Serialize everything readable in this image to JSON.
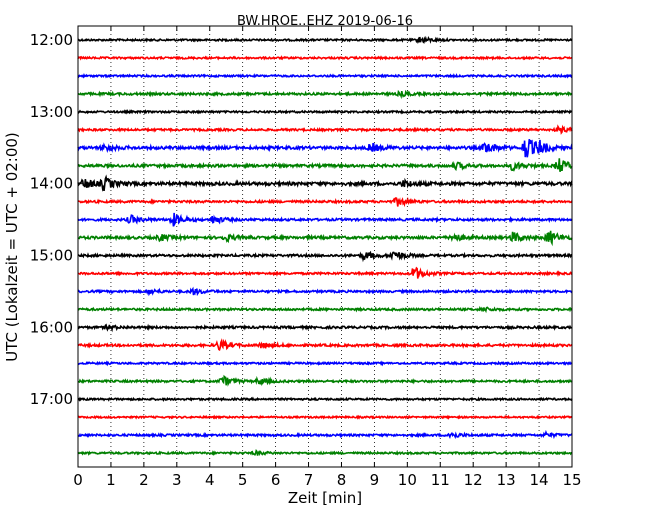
{
  "chart_data": {
    "type": "line",
    "title": "BW.HROE..EHZ 2019-06-16",
    "xlabel": "Zeit  [min]",
    "ylabel": "UTC (Lokalzeit = UTC + 02:00)",
    "xlim": [
      0,
      15
    ],
    "x_ticks": [
      "0",
      "1",
      "2",
      "3",
      "4",
      "5",
      "6",
      "7",
      "8",
      "9",
      "10",
      "11",
      "12",
      "13",
      "14",
      "15"
    ],
    "y_tick_labels": [
      "12:00",
      "13:00",
      "14:00",
      "15:00",
      "16:00",
      "17:00"
    ],
    "grid": "vertical dotted",
    "colors": [
      "#000000",
      "#ff0000",
      "#0000ff",
      "#008000"
    ],
    "traces": [
      {
        "start": "12:00",
        "color": "#000000",
        "amp": 0.9,
        "events": [
          {
            "min": 10.4,
            "amp": 3
          }
        ]
      },
      {
        "start": "12:15",
        "color": "#ff0000",
        "amp": 0.9,
        "events": []
      },
      {
        "start": "12:30",
        "color": "#0000ff",
        "amp": 0.9,
        "events": []
      },
      {
        "start": "12:45",
        "color": "#008000",
        "amp": 1.1,
        "events": [
          {
            "min": 9.8,
            "amp": 2
          }
        ]
      },
      {
        "start": "13:00",
        "color": "#000000",
        "amp": 0.9,
        "events": []
      },
      {
        "start": "13:15",
        "color": "#ff0000",
        "amp": 1.0,
        "events": [
          {
            "min": 14.6,
            "amp": 3
          }
        ]
      },
      {
        "start": "13:30",
        "color": "#0000ff",
        "amp": 1.4,
        "events": [
          {
            "min": 0.8,
            "amp": 3
          },
          {
            "min": 8.9,
            "amp": 4
          },
          {
            "min": 12.4,
            "amp": 6
          },
          {
            "min": 13.6,
            "amp": 12
          },
          {
            "min": 14.0,
            "amp": 5
          }
        ]
      },
      {
        "start": "13:45",
        "color": "#008000",
        "amp": 1.3,
        "events": [
          {
            "min": 11.5,
            "amp": 3
          },
          {
            "min": 13.2,
            "amp": 4
          },
          {
            "min": 14.6,
            "amp": 7
          }
        ]
      },
      {
        "start": "14:00",
        "color": "#000000",
        "amp": 1.5,
        "events": [
          {
            "min": 0.2,
            "amp": 5
          },
          {
            "min": 0.8,
            "amp": 6
          },
          {
            "min": 9.9,
            "amp": 3
          }
        ]
      },
      {
        "start": "14:15",
        "color": "#ff0000",
        "amp": 1.1,
        "events": [
          {
            "min": 9.7,
            "amp": 4
          }
        ]
      },
      {
        "start": "14:30",
        "color": "#0000ff",
        "amp": 1.1,
        "events": [
          {
            "min": 1.6,
            "amp": 4
          },
          {
            "min": 2.9,
            "amp": 6
          },
          {
            "min": 4.1,
            "amp": 4
          }
        ]
      },
      {
        "start": "14:45",
        "color": "#008000",
        "amp": 1.3,
        "events": [
          {
            "min": 2.5,
            "amp": 3
          },
          {
            "min": 4.5,
            "amp": 3
          },
          {
            "min": 11.4,
            "amp": 4
          },
          {
            "min": 13.2,
            "amp": 5
          },
          {
            "min": 14.3,
            "amp": 7
          }
        ]
      },
      {
        "start": "15:00",
        "color": "#000000",
        "amp": 1.1,
        "events": [
          {
            "min": 8.7,
            "amp": 4
          },
          {
            "min": 9.6,
            "amp": 5
          }
        ]
      },
      {
        "start": "15:15",
        "color": "#ff0000",
        "amp": 1.0,
        "events": [
          {
            "min": 10.2,
            "amp": 7
          }
        ]
      },
      {
        "start": "15:30",
        "color": "#0000ff",
        "amp": 1.0,
        "events": [
          {
            "min": 2.2,
            "amp": 2
          },
          {
            "min": 3.5,
            "amp": 3
          }
        ]
      },
      {
        "start": "15:45",
        "color": "#008000",
        "amp": 1.0,
        "events": [
          {
            "min": 12.3,
            "amp": 2
          }
        ]
      },
      {
        "start": "16:00",
        "color": "#000000",
        "amp": 1.1,
        "events": [
          {
            "min": 0.9,
            "amp": 2
          }
        ]
      },
      {
        "start": "16:15",
        "color": "#ff0000",
        "amp": 1.1,
        "events": [
          {
            "min": 4.3,
            "amp": 5
          },
          {
            "min": 5.6,
            "amp": 3
          }
        ]
      },
      {
        "start": "16:30",
        "color": "#0000ff",
        "amp": 0.9,
        "events": []
      },
      {
        "start": "16:45",
        "color": "#008000",
        "amp": 1.0,
        "events": [
          {
            "min": 4.4,
            "amp": 5
          },
          {
            "min": 5.5,
            "amp": 3
          }
        ]
      },
      {
        "start": "17:00",
        "color": "#000000",
        "amp": 0.9,
        "events": []
      },
      {
        "start": "17:15",
        "color": "#ff0000",
        "amp": 0.8,
        "events": []
      },
      {
        "start": "17:30",
        "color": "#0000ff",
        "amp": 1.0,
        "events": [
          {
            "min": 11.3,
            "amp": 3
          },
          {
            "min": 14.2,
            "amp": 2
          }
        ]
      },
      {
        "start": "17:45",
        "color": "#008000",
        "amp": 0.9,
        "events": [
          {
            "min": 5.4,
            "amp": 2
          }
        ]
      }
    ]
  }
}
